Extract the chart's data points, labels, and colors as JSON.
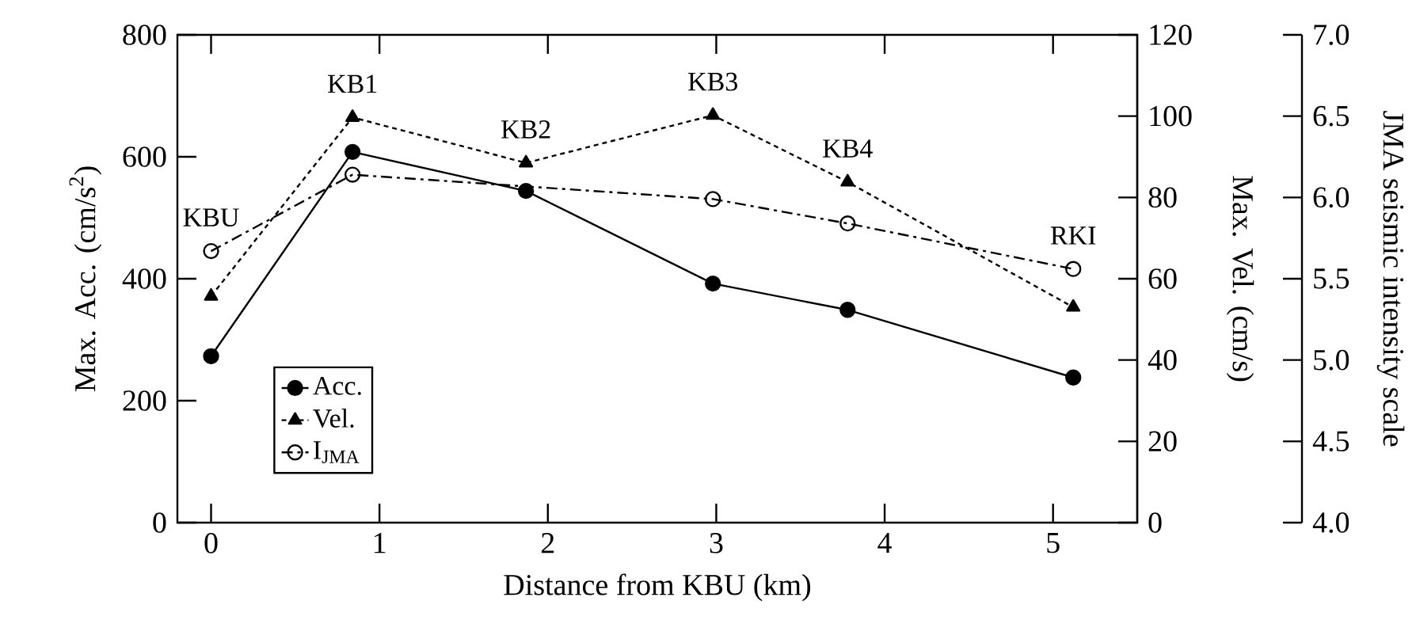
{
  "chart_data": {
    "type": "line",
    "xlabel": "Distance from KBU (km)",
    "ylabel": "Max. Acc. (cm/s$^{2}$)",
    "y2label": "Max. Vel. (cm/s)",
    "y3label": "JMA seismic intensity scale",
    "x": [
      0,
      0.84,
      1.87,
      2.98,
      3.78,
      5.12
    ],
    "series": [
      {
        "name": "Acc.",
        "color": "#000000",
        "values": [
          273,
          608,
          544,
          392,
          349,
          238
        ],
        "marker": "circle",
        "line_style": "solid"
      },
      {
        "name": "Vel.",
        "color": "#000000",
        "values": [
          55.7,
          99.7,
          88.5,
          100.2,
          83.8,
          53
        ],
        "marker": "triangle",
        "line_style": "dotted",
        "axis": "y2"
      },
      {
        "name": "I$_{JMA}$",
        "color": "#000000",
        "values": [
          5.67,
          6.14,
          null,
          5.99,
          5.84,
          5.56
        ],
        "marker": "circle",
        "line_style": "dashdot",
        "axis": "y3"
      }
    ],
    "xlim": [
      -0.2,
      5.5
    ],
    "xticks": [
      0,
      1,
      2,
      3,
      4,
      5
    ],
    "ylim": [
      0,
      800
    ],
    "yticks": [
      0,
      200,
      400,
      600,
      800
    ],
    "y2lim": [
      0,
      120
    ],
    "y2ticks": [
      0,
      20,
      40,
      60,
      80,
      100,
      120
    ],
    "y3lim": [
      4,
      7
    ],
    "y3ticks": [
      {
        "value": 4,
        "label": "4.0"
      },
      {
        "value": 4.5,
        "label": "4.5"
      },
      {
        "value": 5,
        "label": "5.0"
      },
      {
        "value": 5.5,
        "label": "5.5"
      },
      {
        "value": 6,
        "label": "6.0"
      },
      {
        "value": 6.5,
        "label": "6.5"
      },
      {
        "value": 7,
        "label": "7.0"
      }
    ],
    "legend": "bottom left",
    "annotations": [
      "KBU",
      "KB1",
      "KB2",
      "KB3",
      "KB4",
      "RKI"
    ]
  }
}
